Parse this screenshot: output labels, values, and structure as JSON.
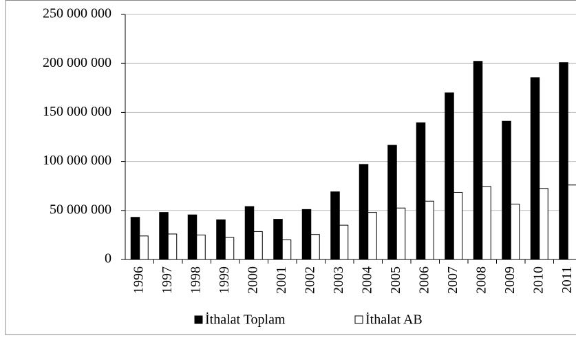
{
  "chart_data": {
    "type": "bar",
    "categories": [
      "1996",
      "1997",
      "1998",
      "1999",
      "2000",
      "2001",
      "2002",
      "2003",
      "2004",
      "2005",
      "2006",
      "2007",
      "2008",
      "2009",
      "2010",
      "2011"
    ],
    "series": [
      {
        "name": "İthalat Toplam",
        "color": "#000000",
        "values": [
          43000000,
          48000000,
          45500000,
          40500000,
          54000000,
          41000000,
          51000000,
          69000000,
          97000000,
          116500000,
          139500000,
          170000000,
          202000000,
          141000000,
          185500000,
          201000000
        ]
      },
      {
        "name": "İthalat AB",
        "color": "#ffffff",
        "values": [
          24000000,
          26000000,
          25000000,
          22500000,
          28500000,
          20000000,
          25500000,
          35000000,
          48000000,
          52500000,
          59500000,
          68500000,
          74500000,
          56500000,
          72500000,
          76000000
        ]
      }
    ],
    "ylim": [
      0,
      250000000
    ],
    "yticks": [
      {
        "value": 0,
        "label": "0"
      },
      {
        "value": 50000000,
        "label": "50 000 000"
      },
      {
        "value": 100000000,
        "label": "100 000 000"
      },
      {
        "value": 150000000,
        "label": "150 000 000"
      },
      {
        "value": 200000000,
        "label": "200 000 000"
      },
      {
        "value": 250000000,
        "label": "250 000 000"
      }
    ],
    "grid": true,
    "legend": "bottom"
  }
}
